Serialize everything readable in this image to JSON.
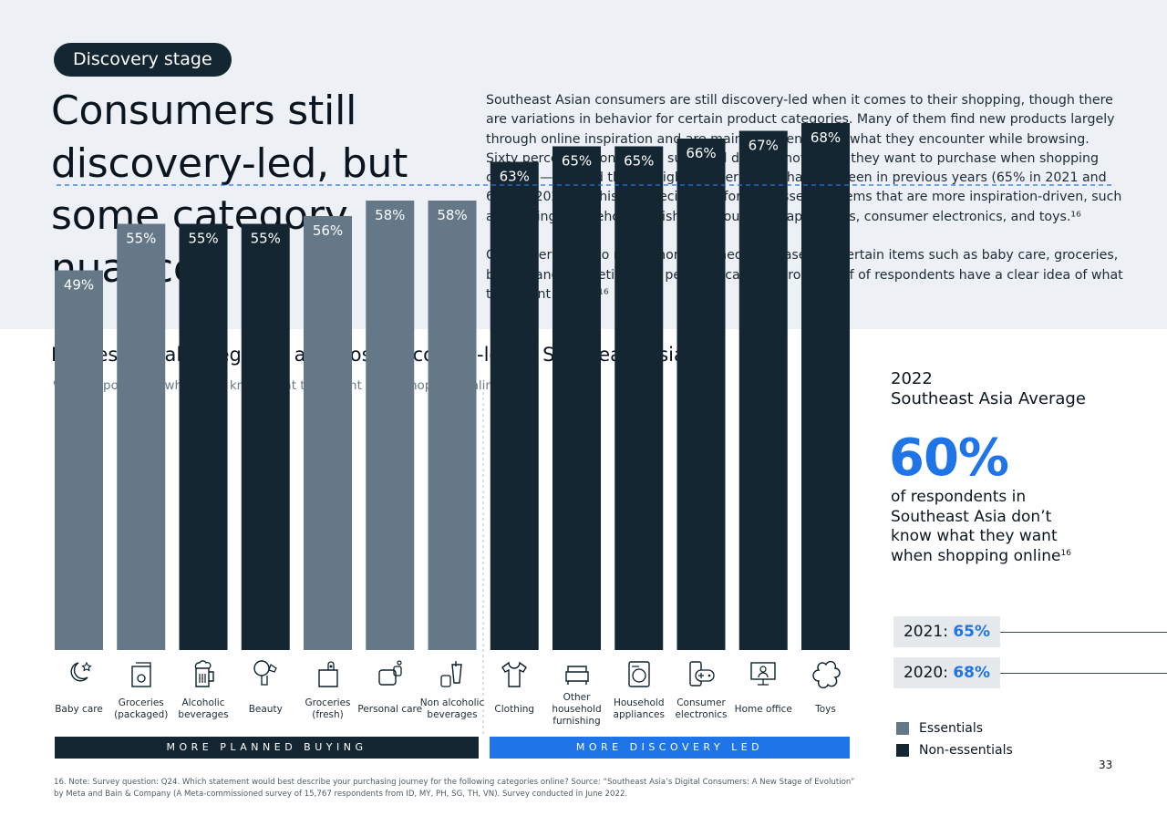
{
  "header": {
    "pill": "Discovery stage",
    "headline": "Consumers still discovery-led, but some category nuances",
    "paragraph1": "Southeast Asian consumers are still discovery-led when it comes to their shopping, though there are variations in behavior for certain product categories. Many of them find new products largely through online inspiration and are mainly influenced by what they encounter while browsing. Sixty percent of consumers surveyed do not know what they want to purchase when shopping online¹⁶ — a trend that is slightly lower than what was seen in previous years (65% in 2021 and 68% in 2020).¹⁶ This is especially so for non-essential items that are more inspiration-driven, such as clothing, household furnishings, household appliances, consumer electronics, and toys.¹⁶",
    "paragraph2": "Consumers tend to make more planned purchases for certain items such as baby care, groceries, beauty and cosmetics, and personal care, as around half of respondents have a clear idea of what they want to buy.¹⁶"
  },
  "chart_data": {
    "type": "bar",
    "title": "Non-essential categories are most discovery-led in Southeast Asia",
    "subtitle": "% of respondents  who don’t know what they want when shopping online",
    "categories": [
      "Baby care",
      "Groceries (packaged)",
      "Alcoholic beverages",
      "Beauty",
      "Groceries (fresh)",
      "Personal care",
      "Non alcoholic beverages",
      "Clothing",
      "Other household furnishing",
      "Household appliances",
      "Consumer electronics",
      "Home office",
      "Toys"
    ],
    "values": [
      49,
      55,
      55,
      55,
      56,
      58,
      58,
      63,
      65,
      65,
      66,
      67,
      68
    ],
    "value_labels": [
      "49%",
      "55%",
      "55%",
      "55%",
      "56%",
      "58%",
      "58%",
      "63%",
      "65%",
      "65%",
      "66%",
      "67%",
      "68%"
    ],
    "category_type": [
      "Essentials",
      "Essentials",
      "Non-essentials",
      "Non-essentials",
      "Essentials",
      "Essentials",
      "Essentials",
      "Non-essentials",
      "Non-essentials",
      "Non-essentials",
      "Non-essentials",
      "Non-essentials",
      "Non-essentials"
    ],
    "icons": [
      "baby-care-icon",
      "groceries-packaged-icon",
      "alcoholic-beverages-icon",
      "beauty-icon",
      "groceries-fresh-icon",
      "personal-care-icon",
      "non-alcoholic-beverages-icon",
      "clothing-icon",
      "household-furnishing-icon",
      "household-appliances-icon",
      "consumer-electronics-icon",
      "home-office-icon",
      "toys-icon"
    ],
    "average_line": 60,
    "ylim": [
      0,
      70
    ],
    "groups": [
      "MORE PLANNED BUYING",
      "MORE DISCOVERY LED"
    ],
    "legend": [
      "Essentials",
      "Non-essentials"
    ],
    "colors": {
      "essentials": "#647887",
      "non_essentials": "#142631",
      "planned_banner": "#142631",
      "discovery_banner": "#1f74e8",
      "highlight": "#1f74e8"
    }
  },
  "average": {
    "year": "2022",
    "label": "Southeast Asia Average",
    "value": "60%",
    "description": "of respondents in Southeast Asia don’t know what they want when shopping online",
    "footnote_ref": "16",
    "previous": [
      {
        "year": "2021:",
        "value": "65%"
      },
      {
        "year": "2020:",
        "value": "68%"
      }
    ]
  },
  "page_number": "33",
  "footnote": "16. Note: Survey question: Q24. Which statement would best describe your purchasing journey for the following categories online? Source: “Southeast Asia’s Digital Consumers: A New Stage of Evolution” by Meta and Bain & Company (A Meta-commissioned survey of 15,767 respondents from ID, MY, PH, SG, TH, VN). Survey conducted in June 2022."
}
